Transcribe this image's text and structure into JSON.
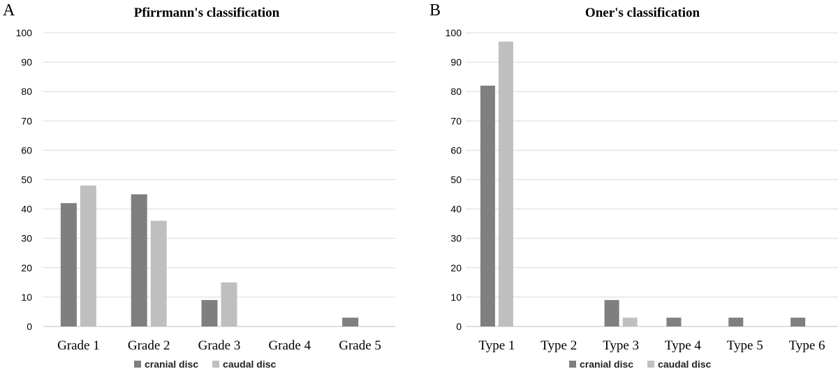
{
  "colors": {
    "cranial": "#7f7f7f",
    "caudal": "#bfbfbf"
  },
  "chart_data": [
    {
      "type": "bar",
      "panel": "A",
      "title": "Pfirrmann's classification",
      "categories": [
        "Grade 1",
        "Grade 2",
        "Grade 3",
        "Grade 4",
        "Grade 5"
      ],
      "series": [
        {
          "name": "cranial disc",
          "values": [
            42,
            45,
            9,
            0,
            3
          ]
        },
        {
          "name": "caudal disc",
          "values": [
            48,
            36,
            15,
            0,
            0
          ]
        }
      ],
      "yticks": [
        "0",
        "10",
        "20",
        "30",
        "40",
        "50",
        "60",
        "70",
        "80",
        "90",
        "100"
      ],
      "ylim": [
        0,
        100
      ],
      "grid": true,
      "legend": "bottom-center"
    },
    {
      "type": "bar",
      "panel": "B",
      "title": "Oner's classification",
      "categories": [
        "Type 1",
        "Type 2",
        "Type 3",
        "Type 4",
        "Type 5",
        "Type 6"
      ],
      "series": [
        {
          "name": "cranial disc",
          "values": [
            82,
            0,
            9,
            3,
            3,
            3
          ]
        },
        {
          "name": "caudal disc",
          "values": [
            97,
            0,
            3,
            0,
            0,
            0
          ]
        }
      ],
      "yticks": [
        "0",
        "10",
        "20",
        "30",
        "40",
        "50",
        "60",
        "70",
        "80",
        "90",
        "100"
      ],
      "ylim": [
        0,
        100
      ],
      "grid": true,
      "legend": "bottom-center"
    }
  ]
}
